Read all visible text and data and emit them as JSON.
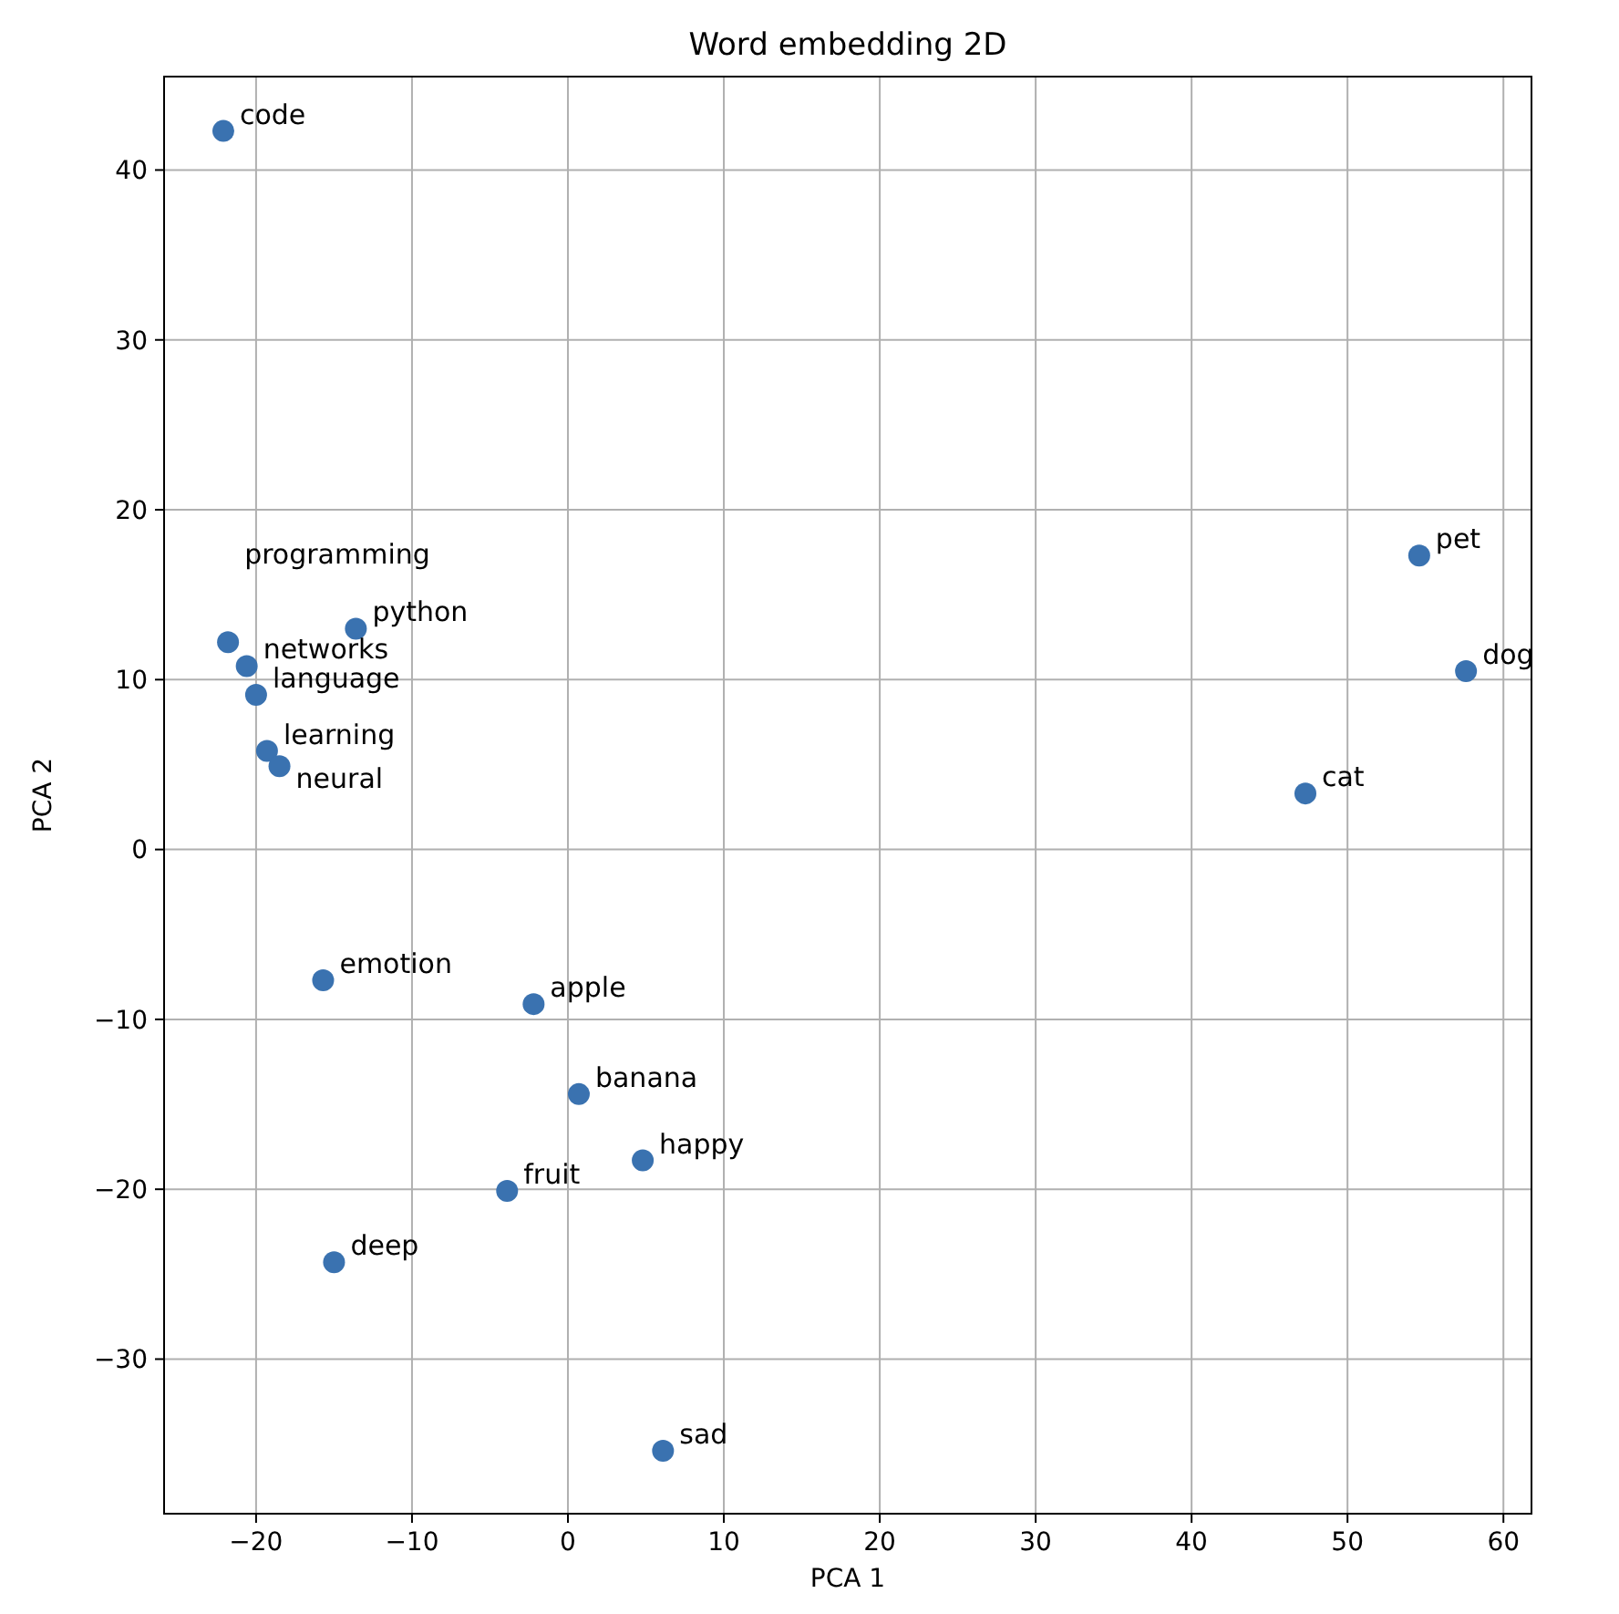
{
  "chart_data": {
    "type": "scatter",
    "title": "Word embedding 2D",
    "xlabel": "PCA 1",
    "ylabel": "PCA 2",
    "x": [
      -22.1,
      54.6,
      57.6,
      47.3,
      -13.6,
      -21.8,
      -20.6,
      -20.0,
      -19.3,
      -18.5,
      -15.7,
      -2.2,
      0.7,
      4.8,
      -3.9,
      -15.0,
      6.1
    ],
    "values": [
      42.3,
      17.3,
      10.5,
      3.3,
      13.0,
      12.2,
      10.8,
      9.1,
      5.8,
      4.9,
      -7.7,
      -9.1,
      -14.4,
      -18.3,
      -20.1,
      -24.3,
      -35.4
    ],
    "color": "#3a72b0",
    "marker": "circle",
    "grid": true,
    "xlim": [
      -25.9,
      61.8
    ],
    "ylim": [
      -39.1,
      45.5
    ],
    "xticks": [
      {
        "value": -20,
        "label": "−20"
      },
      {
        "value": -10,
        "label": "−10"
      },
      0,
      10,
      20,
      30,
      40,
      50,
      60
    ],
    "yticks": [
      {
        "value": -30,
        "label": "−30"
      },
      {
        "value": -20,
        "label": "−20"
      },
      {
        "value": -10,
        "label": "−10"
      },
      0,
      10,
      20,
      30,
      40
    ],
    "annotations": [
      {
        "text": "code",
        "x": -22.1,
        "y": 42.3
      },
      {
        "text": "pet",
        "x": 54.6,
        "y": 17.3
      },
      {
        "text": "dog",
        "x": 57.6,
        "y": 10.5
      },
      {
        "text": "cat",
        "x": 47.3,
        "y": 3.3
      },
      {
        "text": "python",
        "x": -13.6,
        "y": 13.0
      },
      {
        "text": "programming",
        "x": -21.8,
        "y": 12.2
      },
      {
        "text": "networks",
        "x": -20.6,
        "y": 10.8
      },
      {
        "text": "language",
        "x": -20.0,
        "y": 9.1
      },
      {
        "text": "learning",
        "x": -19.3,
        "y": 5.8
      },
      {
        "text": "neural",
        "x": -18.5,
        "y": 4.9
      },
      {
        "text": "emotion",
        "x": -15.7,
        "y": -7.7
      },
      {
        "text": "apple",
        "x": -2.2,
        "y": -9.1
      },
      {
        "text": "banana",
        "x": 0.7,
        "y": -14.4
      },
      {
        "text": "happy",
        "x": 4.8,
        "y": -18.3
      },
      {
        "text": "fruit",
        "x": -3.9,
        "y": -20.1
      },
      {
        "text": "deep",
        "x": -15.0,
        "y": -24.3
      },
      {
        "text": "sad",
        "x": 6.1,
        "y": -35.4
      }
    ]
  }
}
